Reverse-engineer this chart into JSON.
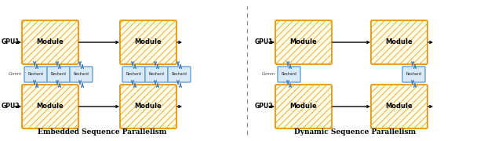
{
  "title_left": "Embedded Sequence Parallelism",
  "title_right": "Dynamic Sequence Parallelism",
  "module_fill": "#FFFDE7",
  "module_edge": "#E8A020",
  "reshard_fill": "#D8EAF8",
  "reshard_edge": "#6A9EC8",
  "arrow_color": "#4A80B8",
  "bg_color": "#FFFFFF",
  "module_label": "Module",
  "reshard_label": "Reshard",
  "comm_label": "Comm",
  "hatch_color": "#F0C060"
}
